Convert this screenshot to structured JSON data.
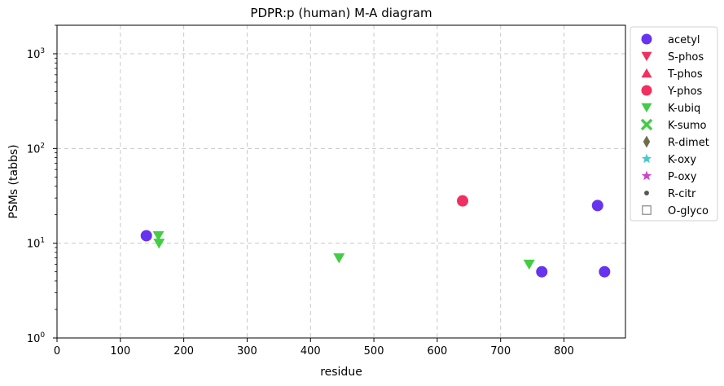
{
  "chart_data": {
    "type": "scatter",
    "title": "PDPR:p (human) M-A diagram",
    "xlabel": "residue",
    "ylabel": "PSMs (tabbs)",
    "xlim": [
      0,
      897
    ],
    "ylim": [
      1,
      2000
    ],
    "yscale": "log",
    "grid": true,
    "legend_position": "outside-right",
    "x_ticks": [
      0,
      100,
      200,
      300,
      400,
      500,
      600,
      700,
      800
    ],
    "y_ticks": [
      {
        "value": 1,
        "base": "10",
        "exp": "0"
      },
      {
        "value": 10,
        "base": "10",
        "exp": "1"
      },
      {
        "value": 100,
        "base": "10",
        "exp": "2"
      },
      {
        "value": 1000,
        "base": "10",
        "exp": "3"
      }
    ],
    "series": [
      {
        "name": "acetyl",
        "marker": "circle",
        "color": "#6633ee",
        "points": [
          [
            141,
            12
          ],
          [
            765,
            5
          ],
          [
            853,
            25
          ],
          [
            864,
            5
          ]
        ]
      },
      {
        "name": "S-phos",
        "marker": "triangle-down",
        "color": "#f03060",
        "points": []
      },
      {
        "name": "T-phos",
        "marker": "triangle-up",
        "color": "#f03060",
        "points": []
      },
      {
        "name": "Y-phos",
        "marker": "circle",
        "color": "#f03060",
        "points": [
          [
            640,
            28
          ]
        ]
      },
      {
        "name": "K-ubiq",
        "marker": "triangle-down",
        "color": "#44cc44",
        "points": [
          [
            160,
            12
          ],
          [
            161,
            10
          ],
          [
            445,
            7
          ],
          [
            745,
            6
          ]
        ]
      },
      {
        "name": "K-sumo",
        "marker": "x",
        "color": "#44cc44",
        "points": []
      },
      {
        "name": "R-dimet",
        "marker": "diamond",
        "color": "#6e6e4a",
        "points": []
      },
      {
        "name": "K-oxy",
        "marker": "star",
        "color": "#44cccc",
        "points": []
      },
      {
        "name": "P-oxy",
        "marker": "star",
        "color": "#cc44cc",
        "points": []
      },
      {
        "name": "R-citr",
        "marker": "dot",
        "color": "#555555",
        "points": []
      },
      {
        "name": "O-glyco",
        "marker": "square-open",
        "color": "#888888",
        "points": []
      }
    ]
  }
}
